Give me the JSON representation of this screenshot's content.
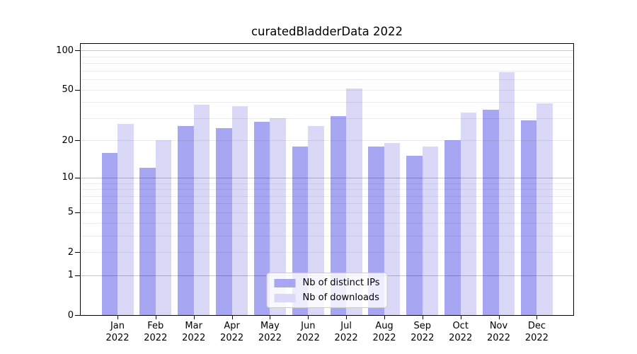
{
  "chart_data": {
    "type": "bar",
    "title": "curatedBladderData 2022",
    "categories": [
      "Jan",
      "Feb",
      "Mar",
      "Apr",
      "May",
      "Jun",
      "Jul",
      "Aug",
      "Sep",
      "Oct",
      "Nov",
      "Dec"
    ],
    "x_tick_year_suffix": "2022",
    "series": [
      {
        "name": "Nb of distinct IPs",
        "color": "#a6a6f2",
        "values": [
          16,
          12,
          26,
          25,
          28,
          18,
          31,
          18,
          15,
          20,
          35,
          29
        ]
      },
      {
        "name": "Nb of downloads",
        "color": "#d9d9f7",
        "values": [
          27,
          20,
          38,
          37,
          30,
          26,
          51,
          19,
          18,
          33,
          68,
          39
        ]
      }
    ],
    "xlabel": "",
    "ylabel": "",
    "yticks": [
      100,
      50,
      20,
      10,
      5,
      2,
      1,
      0
    ],
    "yscale": "log10(x+1)",
    "ylim": [
      0,
      113
    ],
    "grid": "horizontal",
    "grid_major_values": [
      1,
      10,
      100
    ],
    "grid_minor_values": [
      2,
      3,
      4,
      5,
      6,
      7,
      8,
      9,
      20,
      30,
      40,
      50,
      60,
      70,
      80,
      90
    ],
    "legend_position": "lower center",
    "axis_color": "#000000",
    "background_color": "#ffffff"
  }
}
